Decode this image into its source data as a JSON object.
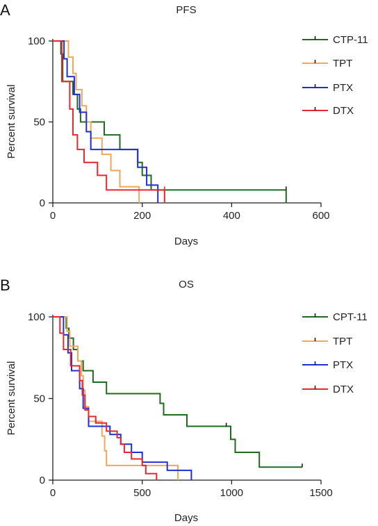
{
  "panels": [
    {
      "letter": "A",
      "chart_data": {
        "type": "line",
        "title": "PFS",
        "xlabel": "Days",
        "ylabel": "Percent survival",
        "xlim": [
          0,
          600
        ],
        "ylim": [
          0,
          100
        ],
        "xticks": [
          0,
          200,
          400,
          600
        ],
        "yticks": [
          0,
          50,
          100
        ],
        "legend_position": "right",
        "series": [
          {
            "name": "CTP-11",
            "color": "#1e6b1e",
            "steps": [
              [
                0,
                100
              ],
              [
                18,
                100
              ],
              [
                18,
                92
              ],
              [
                22,
                92
              ],
              [
                22,
                75
              ],
              [
                45,
                75
              ],
              [
                45,
                67
              ],
              [
                55,
                67
              ],
              [
                55,
                58
              ],
              [
                62,
                58
              ],
              [
                62,
                50
              ],
              [
                115,
                50
              ],
              [
                115,
                42
              ],
              [
                150,
                42
              ],
              [
                150,
                33
              ],
              [
                190,
                33
              ],
              [
                190,
                25
              ],
              [
                200,
                25
              ],
              [
                200,
                17
              ],
              [
                220,
                17
              ],
              [
                220,
                8
              ],
              [
                522,
                8
              ],
              [
                522,
                0
              ]
            ],
            "censor": [
              [
                522,
                8
              ]
            ]
          },
          {
            "name": "TPT",
            "color": "#f2a65a",
            "steps": [
              [
                0,
                100
              ],
              [
                35,
                100
              ],
              [
                35,
                90
              ],
              [
                45,
                90
              ],
              [
                45,
                80
              ],
              [
                52,
                80
              ],
              [
                52,
                70
              ],
              [
                65,
                70
              ],
              [
                65,
                60
              ],
              [
                75,
                60
              ],
              [
                75,
                50
              ],
              [
                85,
                50
              ],
              [
                85,
                40
              ],
              [
                110,
                40
              ],
              [
                110,
                30
              ],
              [
                130,
                30
              ],
              [
                130,
                20
              ],
              [
                150,
                20
              ],
              [
                150,
                10
              ],
              [
                193,
                10
              ],
              [
                193,
                0
              ]
            ],
            "censor": []
          },
          {
            "name": "PTX",
            "color": "#1f2fd6",
            "steps": [
              [
                0,
                100
              ],
              [
                25,
                100
              ],
              [
                25,
                89
              ],
              [
                32,
                89
              ],
              [
                32,
                78
              ],
              [
                48,
                78
              ],
              [
                48,
                67
              ],
              [
                60,
                67
              ],
              [
                60,
                56
              ],
              [
                75,
                56
              ],
              [
                75,
                44
              ],
              [
                85,
                44
              ],
              [
                85,
                33
              ],
              [
                190,
                33
              ],
              [
                190,
                22
              ],
              [
                210,
                22
              ],
              [
                210,
                11
              ],
              [
                235,
                11
              ],
              [
                235,
                0
              ]
            ],
            "censor": []
          },
          {
            "name": "DTX",
            "color": "#e8262b",
            "steps": [
              [
                0,
                100
              ],
              [
                20,
                100
              ],
              [
                20,
                75
              ],
              [
                38,
                75
              ],
              [
                38,
                58
              ],
              [
                45,
                58
              ],
              [
                45,
                42
              ],
              [
                55,
                42
              ],
              [
                55,
                33
              ],
              [
                70,
                33
              ],
              [
                70,
                25
              ],
              [
                100,
                25
              ],
              [
                100,
                17
              ],
              [
                120,
                17
              ],
              [
                120,
                8
              ],
              [
                250,
                8
              ],
              [
                250,
                0
              ]
            ],
            "censor": [
              [
                250,
                8
              ]
            ]
          }
        ]
      }
    },
    {
      "letter": "B",
      "chart_data": {
        "type": "line",
        "title": "OS",
        "xlabel": "Days",
        "ylabel": "Percent survival",
        "xlim": [
          0,
          1500
        ],
        "ylim": [
          0,
          100
        ],
        "xticks": [
          0,
          500,
          1000,
          1500
        ],
        "yticks": [
          0,
          50,
          100
        ],
        "legend_position": "right",
        "series": [
          {
            "name": "CPT-11",
            "color": "#1e6b1e",
            "steps": [
              [
                0,
                100
              ],
              [
                75,
                100
              ],
              [
                75,
                93
              ],
              [
                90,
                93
              ],
              [
                90,
                87
              ],
              [
                115,
                87
              ],
              [
                115,
                80
              ],
              [
                140,
                80
              ],
              [
                140,
                73
              ],
              [
                170,
                73
              ],
              [
                170,
                67
              ],
              [
                225,
                67
              ],
              [
                225,
                60
              ],
              [
                300,
                60
              ],
              [
                300,
                53
              ],
              [
                600,
                53
              ],
              [
                600,
                47
              ],
              [
                620,
                47
              ],
              [
                620,
                40
              ],
              [
                750,
                40
              ],
              [
                750,
                33
              ],
              [
                995,
                33
              ],
              [
                995,
                25
              ],
              [
                1020,
                25
              ],
              [
                1020,
                17
              ],
              [
                1155,
                17
              ],
              [
                1155,
                8
              ],
              [
                1395,
                8
              ]
            ],
            "censor": [
              [
                970,
                33
              ],
              [
                1395,
                8
              ]
            ]
          },
          {
            "name": "TPT",
            "color": "#f2a65a",
            "steps": [
              [
                0,
                100
              ],
              [
                80,
                100
              ],
              [
                80,
                91
              ],
              [
                95,
                91
              ],
              [
                95,
                82
              ],
              [
                140,
                82
              ],
              [
                140,
                73
              ],
              [
                160,
                73
              ],
              [
                160,
                64
              ],
              [
                170,
                64
              ],
              [
                170,
                55
              ],
              [
                180,
                55
              ],
              [
                180,
                45
              ],
              [
                200,
                45
              ],
              [
                200,
                36
              ],
              [
                275,
                36
              ],
              [
                275,
                27
              ],
              [
                290,
                27
              ],
              [
                290,
                18
              ],
              [
                300,
                18
              ],
              [
                300,
                9
              ],
              [
                700,
                9
              ],
              [
                700,
                0
              ]
            ],
            "censor": []
          },
          {
            "name": "PTX",
            "color": "#1f2fd6",
            "steps": [
              [
                0,
                100
              ],
              [
                60,
                100
              ],
              [
                60,
                89
              ],
              [
                85,
                89
              ],
              [
                85,
                78
              ],
              [
                105,
                78
              ],
              [
                105,
                67
              ],
              [
                150,
                67
              ],
              [
                150,
                56
              ],
              [
                170,
                56
              ],
              [
                170,
                44
              ],
              [
                200,
                44
              ],
              [
                200,
                33
              ],
              [
                320,
                33
              ],
              [
                320,
                28
              ],
              [
                380,
                28
              ],
              [
                380,
                22
              ],
              [
                440,
                22
              ],
              [
                440,
                17
              ],
              [
                500,
                17
              ],
              [
                500,
                11
              ],
              [
                640,
                11
              ],
              [
                640,
                6
              ],
              [
                775,
                6
              ],
              [
                775,
                0
              ]
            ],
            "censor": []
          },
          {
            "name": "DTX",
            "color": "#e8262b",
            "steps": [
              [
                0,
                100
              ],
              [
                40,
                100
              ],
              [
                40,
                90
              ],
              [
                60,
                90
              ],
              [
                60,
                80
              ],
              [
                100,
                80
              ],
              [
                100,
                70
              ],
              [
                150,
                70
              ],
              [
                150,
                61
              ],
              [
                165,
                61
              ],
              [
                165,
                52
              ],
              [
                180,
                52
              ],
              [
                180,
                43
              ],
              [
                200,
                43
              ],
              [
                200,
                39
              ],
              [
                240,
                39
              ],
              [
                240,
                35
              ],
              [
                300,
                35
              ],
              [
                300,
                30
              ],
              [
                360,
                30
              ],
              [
                360,
                26
              ],
              [
                380,
                26
              ],
              [
                380,
                22
              ],
              [
                400,
                22
              ],
              [
                400,
                17
              ],
              [
                440,
                17
              ],
              [
                440,
                13
              ],
              [
                500,
                13
              ],
              [
                500,
                9
              ],
              [
                520,
                9
              ],
              [
                520,
                4
              ],
              [
                580,
                4
              ],
              [
                580,
                0
              ]
            ],
            "censor": []
          }
        ]
      }
    }
  ]
}
